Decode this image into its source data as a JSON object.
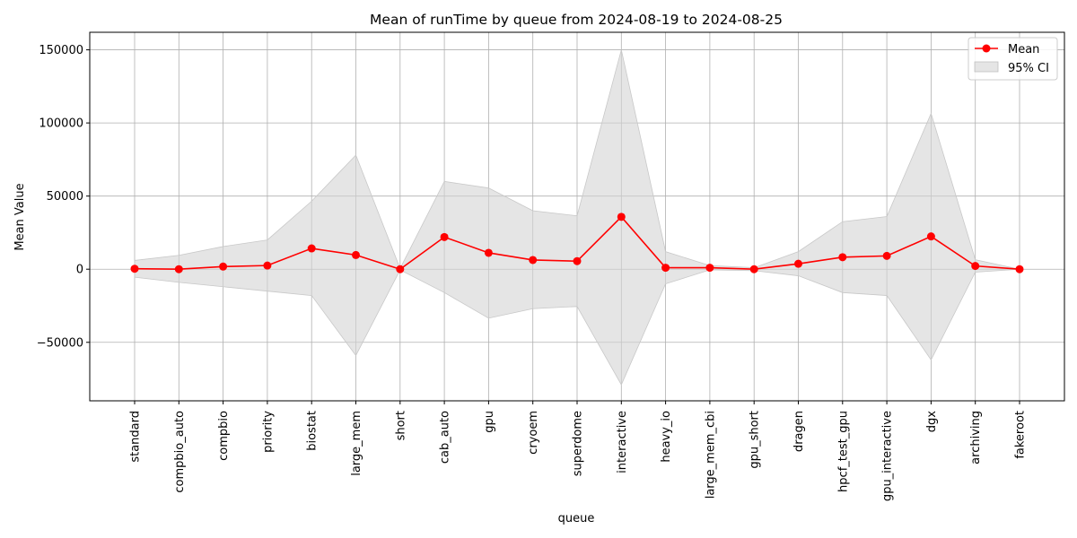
{
  "chart_data": {
    "type": "line",
    "title": "Mean of runTime by queue from 2024-08-19 to 2024-08-25",
    "xlabel": "queue",
    "ylabel": "Mean Value",
    "categories": [
      "standard",
      "compbio_auto",
      "compbio",
      "priority",
      "biostat",
      "large_mem",
      "short",
      "cab_auto",
      "gpu",
      "cryoem",
      "superdome",
      "interactive",
      "heavy_io",
      "large_mem_cbi",
      "gpu_short",
      "dragen",
      "hpcf_test_gpu",
      "gpu_interactive",
      "dgx",
      "archiving",
      "fakeroot"
    ],
    "series": [
      {
        "name": "Mean",
        "color": "#ff0000",
        "values": [
          300,
          0,
          1800,
          2500,
          14200,
          9700,
          0,
          22000,
          11200,
          6300,
          5500,
          35800,
          1000,
          1000,
          0,
          3700,
          8200,
          9100,
          22400,
          2200,
          0
        ]
      }
    ],
    "ci": {
      "name": "95% CI",
      "color": "#d3d3d3",
      "lower": [
        -5500,
        -9000,
        -12000,
        -15000,
        -18000,
        -59000,
        -500,
        -16000,
        -33500,
        -27000,
        -25500,
        -79000,
        -10000,
        -500,
        -1000,
        -4500,
        -16000,
        -18000,
        -62000,
        -2000,
        0
      ],
      "upper": [
        6000,
        9500,
        15500,
        20000,
        46500,
        78000,
        500,
        60000,
        55500,
        40000,
        36500,
        150000,
        12000,
        2500,
        1000,
        12000,
        32500,
        36000,
        106500,
        6500,
        0
      ]
    },
    "ylim": [
      -90000,
      162000
    ],
    "yticks": [
      -50000,
      0,
      50000,
      100000,
      150000
    ],
    "ytick_labels": [
      "−50000",
      "0",
      "50000",
      "100000",
      "150000"
    ],
    "grid": true,
    "legend_position": "top-right"
  }
}
